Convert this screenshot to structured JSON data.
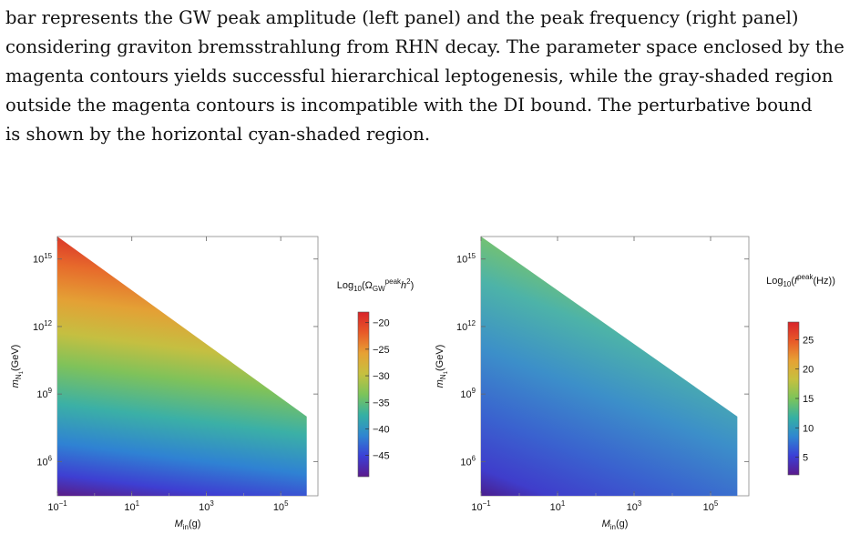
{
  "caption": {
    "lines": [
      "bar represents the GW peak amplitude (left panel) and the peak frequency (right panel)",
      "considering graviton bremsstrahlung from RHN decay. The parameter space enclosed by the",
      "magenta contours yields successful hierarchical leptogenesis, while the gray-shaded region",
      "outside the magenta contours is incompatible with the DI bound. The perturbative bound",
      "is shown by the horizontal cyan-shaded region."
    ]
  },
  "chart_data": [
    {
      "type": "heatmap",
      "panel": "left",
      "xlabel": "M_in(g)",
      "ylabel": "m_N1(GeV)",
      "x_scale": "log",
      "y_scale": "log",
      "xlim": [
        0.1,
        1000000
      ],
      "ylim": [
        30000,
        10000000000000000
      ],
      "x_ticks": [
        "10^-1",
        "10^1",
        "10^3",
        "10^5"
      ],
      "x_tick_values": [
        0.1,
        10,
        1000,
        100000
      ],
      "y_ticks": [
        "10^6",
        "10^9",
        "10^12",
        "10^15"
      ],
      "y_tick_values": [
        1000000,
        1000000000,
        1000000000000,
        1000000000000000
      ],
      "region": {
        "x_min": 0.1,
        "x_max": 500000,
        "upper_boundary": [
          [
            0.1,
            1e+16
          ],
          [
            500000,
            100000000.0
          ]
        ]
      },
      "colorbar": {
        "label": "Log10(Ω_GW^peak h^2)",
        "range": [
          -49,
          -18
        ],
        "ticks": [
          -20,
          -25,
          -30,
          -35,
          -40,
          -45
        ]
      }
    },
    {
      "type": "heatmap",
      "panel": "right",
      "xlabel": "M_in(g)",
      "ylabel": "m_N1(GeV)",
      "x_scale": "log",
      "y_scale": "log",
      "xlim": [
        0.1,
        1000000
      ],
      "ylim": [
        30000,
        10000000000000000
      ],
      "x_ticks": [
        "10^-1",
        "10^1",
        "10^3",
        "10^5"
      ],
      "x_tick_values": [
        0.1,
        10,
        1000,
        100000
      ],
      "y_ticks": [
        "10^6",
        "10^9",
        "10^12",
        "10^15"
      ],
      "y_tick_values": [
        1000000,
        1000000000,
        1000000000000,
        1000000000000000
      ],
      "region": {
        "x_min": 0.1,
        "x_max": 500000,
        "upper_boundary": [
          [
            0.1,
            1e+16
          ],
          [
            500000,
            100000000.0
          ]
        ]
      },
      "colorbar": {
        "label": "Log10(f^peak(Hz))",
        "range": [
          2,
          28
        ],
        "ticks": [
          5,
          10,
          15,
          20,
          25
        ]
      }
    }
  ]
}
